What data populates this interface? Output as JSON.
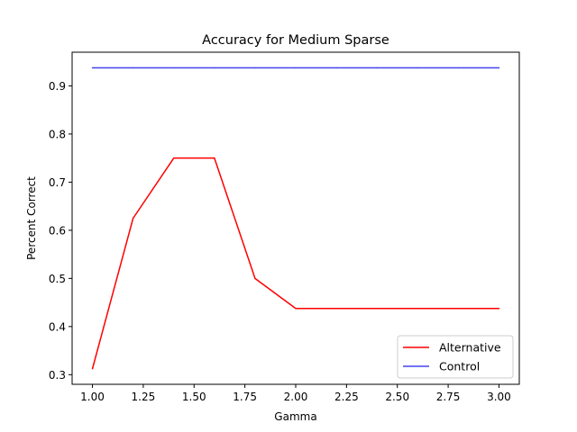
{
  "chart_data": {
    "type": "line",
    "title": "Accuracy for Medium Sparse",
    "xlabel": "Gamma",
    "ylabel": "Percent Correct",
    "xlim": [
      0.9,
      3.1
    ],
    "ylim": [
      0.28,
      0.97
    ],
    "xticks": [
      1.0,
      1.25,
      1.5,
      1.75,
      2.0,
      2.25,
      2.5,
      2.75,
      3.0
    ],
    "xtick_labels": [
      "1.00",
      "1.25",
      "1.50",
      "1.75",
      "2.00",
      "2.25",
      "2.50",
      "2.75",
      "3.00"
    ],
    "yticks": [
      0.3,
      0.4,
      0.5,
      0.6,
      0.7,
      0.8,
      0.9
    ],
    "ytick_labels": [
      "0.3",
      "0.4",
      "0.5",
      "0.6",
      "0.7",
      "0.8",
      "0.9"
    ],
    "grid": false,
    "legend_position": "bottom-right",
    "series": [
      {
        "name": "Alternative",
        "color": "#ff0000",
        "x": [
          1.0,
          1.2,
          1.4,
          1.6,
          1.8,
          2.0,
          2.2,
          2.4,
          2.6,
          2.8,
          3.0
        ],
        "y": [
          0.3125,
          0.625,
          0.75,
          0.75,
          0.5,
          0.4375,
          0.4375,
          0.4375,
          0.4375,
          0.4375,
          0.4375
        ]
      },
      {
        "name": "Control",
        "color": "#4444ee",
        "x": [
          1.0,
          1.2,
          1.4,
          1.6,
          1.8,
          2.0,
          2.2,
          2.4,
          2.6,
          2.8,
          3.0
        ],
        "y": [
          0.9375,
          0.9375,
          0.9375,
          0.9375,
          0.9375,
          0.9375,
          0.9375,
          0.9375,
          0.9375,
          0.9375,
          0.9375
        ]
      }
    ]
  }
}
